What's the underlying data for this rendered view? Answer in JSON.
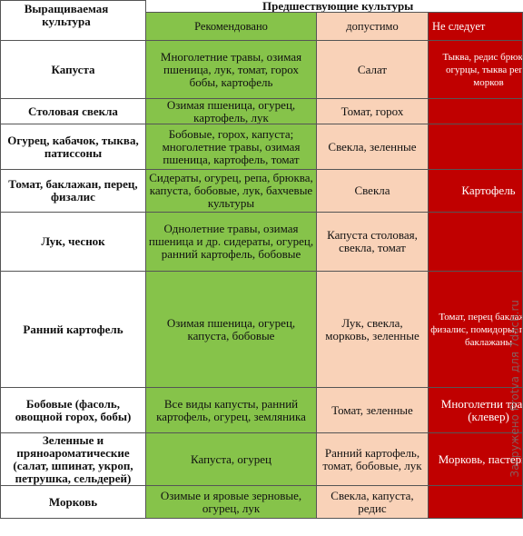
{
  "header": {
    "crop_col": "Выращиваемая культура",
    "predecessors": "Предшествующие культуры",
    "recommended": "Рекомендовано",
    "acceptable": "допустимо",
    "not_recommended": "Не следует"
  },
  "rows": [
    {
      "crop": "Капуста",
      "recommended": "Многолетние травы, озимая пшеница, лук, томат, горох бобы, картофель",
      "acceptable": "Салат",
      "not_recommended": "Тыква, редис брюква, огурцы, тыква репа, морков"
    },
    {
      "crop": "Столовая свекла",
      "recommended": "Озимая пшеница, огурец, картофель, лук",
      "acceptable": "Томат, горох",
      "not_recommended": ""
    },
    {
      "crop": "Огурец, кабачок, тыква, патиссоны",
      "recommended": "Бобовые, горох, капуста; многолетние травы, озимая пшеница, картофель, томат",
      "acceptable": "Свекла, зеленные",
      "not_recommended": ""
    },
    {
      "crop": "Томат, баклажан, перец, физалис",
      "recommended": "Сидераты, огурец, репа, брюква, капуста, бобовые, лук, бахчевые культуры",
      "acceptable": "Свекла",
      "not_recommended": "Картофель"
    },
    {
      "crop": "Лук, чеснок",
      "recommended": "Однолетние травы, озимая пшеница и др. сидераты, огурец, ранний картофель, бобовые",
      "acceptable": "Капуста столовая, свекла, томат",
      "not_recommended": ""
    },
    {
      "crop": "Ранний картофель",
      "recommended": "Озимая пшеница, огурец, капуста, бобовые",
      "acceptable": "Лук, свекла, морковь, зеленные",
      "not_recommended": "Томат, перец баклажан, физалис, помидоры, перец, баклажаны"
    },
    {
      "crop": "Бобовые (фасоль, овощной горох, бобы)",
      "recommended": "Все виды капусты, ранний картофель, огурец, земляника",
      "acceptable": "Томат, зеленные",
      "not_recommended": "Многолетни травы (клевер)"
    },
    {
      "crop": "Зеленные и пряноароматические (салат, шпинат, укроп, петрушка, сельдерей)",
      "recommended": "Капуста, огурец",
      "acceptable": "Ранний картофель, томат, бобовые, лук",
      "not_recommended": "Морковь, пастернак"
    },
    {
      "crop": "Морковь",
      "recommended": "Озимые и яровые зерновые, огурец, лук",
      "acceptable": "Свекла, капуста, редис",
      "not_recommended": ""
    }
  ],
  "watermark": "Загружено Protva для 7dach.ru",
  "colors": {
    "recommended_bg": "#86c34a",
    "acceptable_bg": "#f9d2b8",
    "not_recommended_bg": "#c00000"
  }
}
